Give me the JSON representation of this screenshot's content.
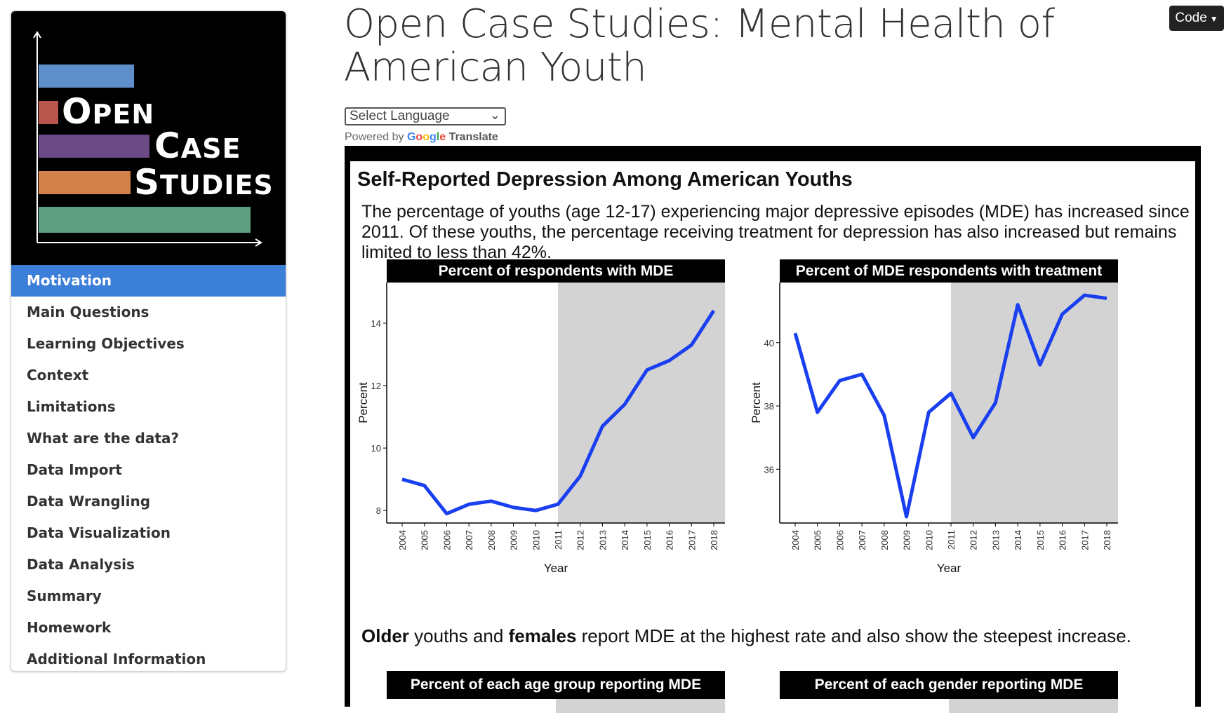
{
  "sidebar": {
    "logo": {
      "words": [
        "Open",
        "Case",
        "Studies"
      ],
      "bar_colors": [
        "#5e8fcb",
        "#b8564e",
        "#6b4a86",
        "#d4804a",
        "#5e9e80"
      ]
    },
    "items": [
      {
        "label": "Motivation",
        "active": true
      },
      {
        "label": "Main Questions"
      },
      {
        "label": "Learning Objectives"
      },
      {
        "label": "Context"
      },
      {
        "label": "Limitations"
      },
      {
        "label": "What are the data?"
      },
      {
        "label": "Data Import"
      },
      {
        "label": "Data Wrangling"
      },
      {
        "label": "Data Visualization"
      },
      {
        "label": "Data Analysis"
      },
      {
        "label": "Summary"
      },
      {
        "label": "Homework"
      },
      {
        "label": "Additional Information"
      }
    ],
    "active_color": "#3b7fd8"
  },
  "header": {
    "title": "Open Case Studies: Mental Health of American Youth",
    "code_button": "Code"
  },
  "translate": {
    "select_label": "Select Language",
    "powered_by": "Powered by",
    "google": "Google",
    "translate": "Translate"
  },
  "infographic": {
    "title": "Self-Reported Depression Among American Youths",
    "text": "The percentage of youths (age 12-17) experiencing major depressive episodes (MDE) has increased since 2011. Of these youths, the percentage receiving treatment for depression has also increased but remains limited to less than 42%.",
    "text2_bold1": "Older",
    "text2_mid1": " youths and ",
    "text2_bold2": "females",
    "text2_end": " report MDE at the highest rate and also show the steepest increase.",
    "bottom_chart_titles": [
      "Percent of each age group reporting MDE",
      "Percent of each gender reporting MDE"
    ]
  },
  "chart_data": [
    {
      "type": "line",
      "title": "Percent of respondents with MDE",
      "xlabel": "Year",
      "ylabel": "Percent",
      "x": [
        2004,
        2005,
        2006,
        2007,
        2008,
        2009,
        2010,
        2011,
        2012,
        2013,
        2014,
        2015,
        2016,
        2017,
        2018
      ],
      "y": [
        9.0,
        8.8,
        7.9,
        8.2,
        8.3,
        8.1,
        8.0,
        8.2,
        9.1,
        10.7,
        11.4,
        12.5,
        12.8,
        13.3,
        14.4
      ],
      "yticks": [
        8,
        10,
        12,
        14
      ],
      "ylim": [
        7.6,
        15.3
      ],
      "shaded_from": 2011,
      "line_color": "#1a3ff0",
      "shade_color": "#d3d3d3",
      "grid": false
    },
    {
      "type": "line",
      "title": "Percent of MDE respondents with treatment",
      "xlabel": "Year",
      "ylabel": "Percent",
      "x": [
        2004,
        2005,
        2006,
        2007,
        2008,
        2009,
        2010,
        2011,
        2012,
        2013,
        2014,
        2015,
        2016,
        2017,
        2018
      ],
      "y": [
        40.3,
        37.8,
        38.8,
        39.0,
        37.7,
        34.5,
        37.8,
        38.4,
        37.0,
        38.1,
        41.2,
        39.3,
        40.9,
        41.5,
        41.4
      ],
      "yticks": [
        36,
        38,
        40
      ],
      "ylim": [
        34.3,
        41.9
      ],
      "shaded_from": 2011,
      "line_color": "#1a3ff0",
      "shade_color": "#d3d3d3",
      "grid": false
    }
  ]
}
